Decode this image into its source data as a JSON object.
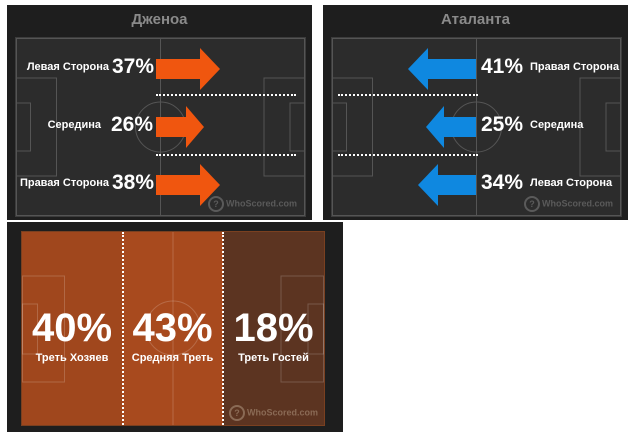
{
  "home": {
    "team_name": "Дженоа",
    "arrow_color": "#f0560f",
    "sides": [
      {
        "label": "Левая Сторона",
        "pct": "37%"
      },
      {
        "label": "Середина",
        "pct": "26%"
      },
      {
        "label": "Правая Сторона",
        "pct": "38%"
      }
    ],
    "watermark": "WhoScored.com"
  },
  "away": {
    "team_name": "Аталанта",
    "arrow_color": "#0f88e0",
    "sides": [
      {
        "label": "Правая Сторона",
        "pct": "41%"
      },
      {
        "label": "Середина",
        "pct": "25%"
      },
      {
        "label": "Левая Сторона",
        "pct": "34%"
      }
    ],
    "watermark": "WhoScored.com"
  },
  "thirds": {
    "zones": [
      {
        "label": "Треть Хозяев",
        "pct": "40%"
      },
      {
        "label": "Средняя Треть",
        "pct": "43%"
      },
      {
        "label": "Треть Гостей",
        "pct": "18%"
      }
    ],
    "watermark": "WhoScored.com"
  }
}
